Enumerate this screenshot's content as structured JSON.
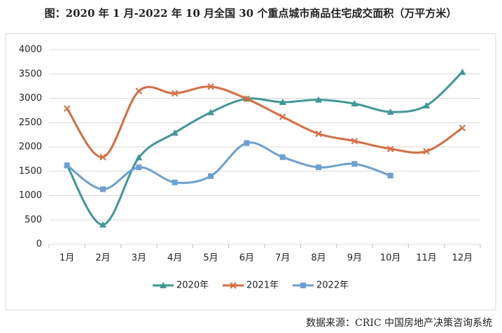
{
  "chart_data": {
    "type": "line",
    "title": "图：2020 年 1 月-2022 年 10 月全国 30 个重点城市商品住宅成交面积（万平方米）",
    "source": "数据来源：CRIC 中国房地产决策咨询系统",
    "categories": [
      "1月",
      "2月",
      "3月",
      "4月",
      "5月",
      "6月",
      "7月",
      "8月",
      "9月",
      "10月",
      "11月",
      "12月"
    ],
    "series": [
      {
        "name": "2020年",
        "color": "#3a9a95",
        "marker": "triangle",
        "values": [
          1620,
          400,
          1780,
          2290,
          2710,
          2990,
          2920,
          2970,
          2890,
          2720,
          2850,
          3540
        ]
      },
      {
        "name": "2021年",
        "color": "#e06a3c",
        "marker": "x",
        "values": [
          2790,
          1790,
          3150,
          3100,
          3240,
          2990,
          2620,
          2270,
          2120,
          1960,
          1910,
          2390
        ]
      },
      {
        "name": "2022年",
        "color": "#6aa0d8",
        "marker": "square",
        "values": [
          1620,
          1130,
          1580,
          1270,
          1400,
          2080,
          1790,
          1580,
          1650,
          1410,
          null,
          null
        ]
      }
    ],
    "ylim": [
      0,
      4000
    ],
    "yticks": [
      0,
      500,
      1000,
      1500,
      2000,
      2500,
      3000,
      3500,
      4000
    ],
    "grid": true,
    "legend": "bottom"
  }
}
